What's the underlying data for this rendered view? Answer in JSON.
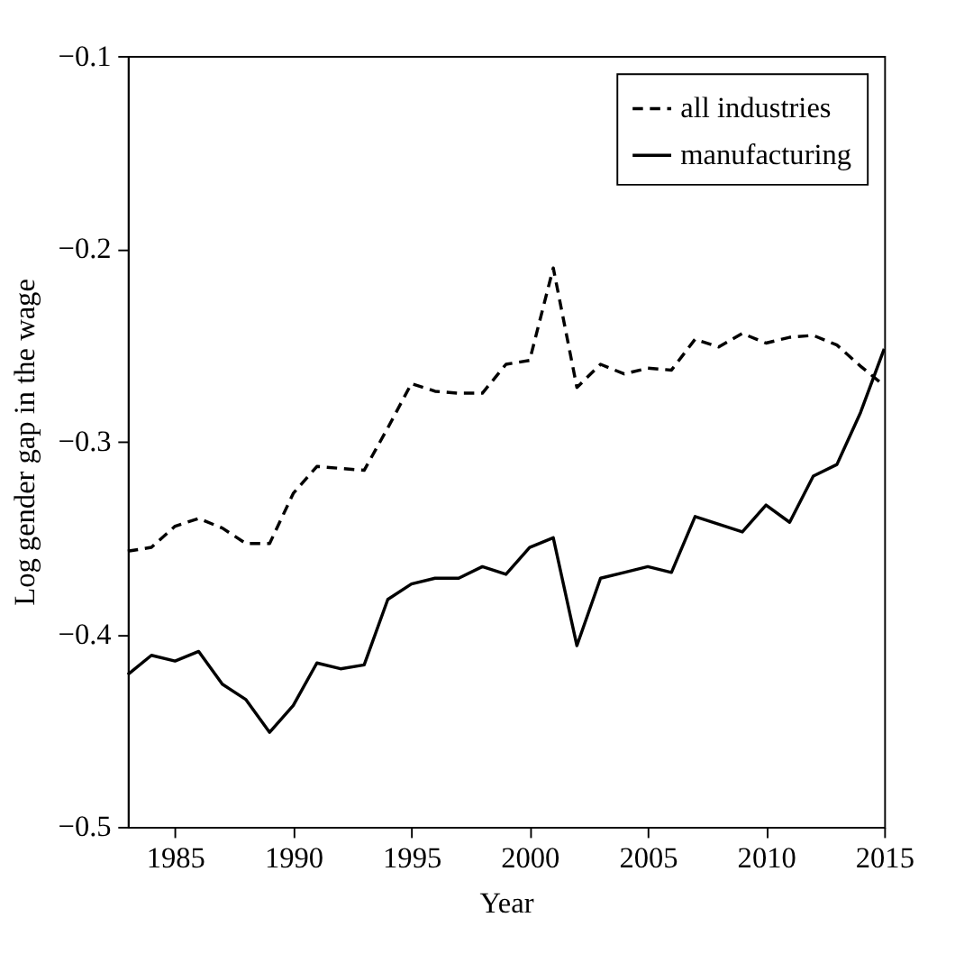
{
  "chart_data": {
    "type": "line",
    "xlabel": "Year",
    "ylabel": "Log gender gap in the wage",
    "x": [
      1983,
      1984,
      1985,
      1986,
      1987,
      1988,
      1989,
      1990,
      1991,
      1992,
      1993,
      1994,
      1995,
      1996,
      1997,
      1998,
      1999,
      2000,
      2001,
      2002,
      2003,
      2004,
      2005,
      2006,
      2007,
      2008,
      2009,
      2010,
      2011,
      2012,
      2013,
      2014,
      2015
    ],
    "series": [
      {
        "name": "all industries",
        "color": "#000000",
        "line_style": "dashed",
        "values": [
          -0.357,
          -0.355,
          -0.344,
          -0.34,
          -0.345,
          -0.353,
          -0.353,
          -0.327,
          -0.313,
          -0.314,
          -0.315,
          -0.293,
          -0.27,
          -0.274,
          -0.275,
          -0.275,
          -0.26,
          -0.258,
          -0.21,
          -0.272,
          -0.26,
          -0.265,
          -0.262,
          -0.263,
          -0.247,
          -0.251,
          -0.244,
          -0.249,
          -0.246,
          -0.245,
          -0.25,
          -0.261,
          -0.271
        ]
      },
      {
        "name": "manufacturing",
        "color": "#000000",
        "line_style": "solid",
        "values": [
          -0.421,
          -0.411,
          -0.414,
          -0.409,
          -0.426,
          -0.434,
          -0.451,
          -0.437,
          -0.415,
          -0.418,
          -0.416,
          -0.382,
          -0.374,
          -0.371,
          -0.371,
          -0.365,
          -0.369,
          -0.355,
          -0.35,
          -0.406,
          -0.371,
          -0.368,
          -0.365,
          -0.368,
          -0.339,
          -0.343,
          -0.347,
          -0.333,
          -0.342,
          -0.318,
          -0.312,
          -0.285,
          -0.252
        ]
      }
    ],
    "xlim": [
      1983,
      2015
    ],
    "xticks": [
      1985,
      1990,
      1995,
      2000,
      2005,
      2010,
      2015
    ],
    "ylim": [
      -0.5,
      -0.1
    ],
    "yticks": [
      {
        "value": -0.5,
        "label": "−0.5"
      },
      {
        "value": -0.4,
        "label": "−0.4"
      },
      {
        "value": -0.3,
        "label": "−0.3"
      },
      {
        "value": -0.2,
        "label": "−0.2"
      },
      {
        "value": -0.1,
        "label": "−0.1"
      }
    ],
    "grid": false,
    "legend": "top right",
    "marker": "none"
  }
}
